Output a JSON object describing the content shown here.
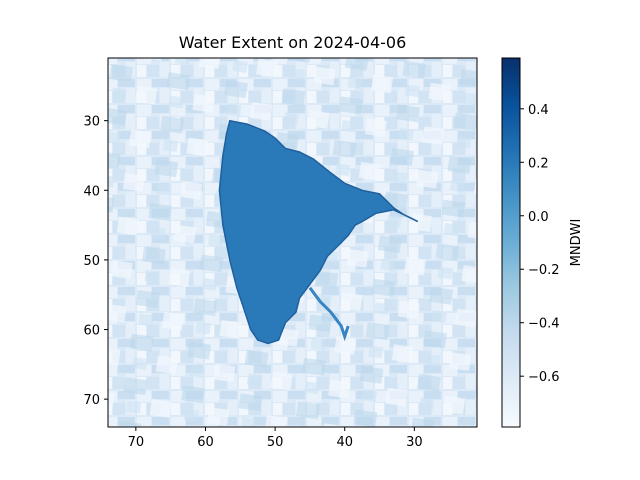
{
  "chart_data": {
    "type": "heatmap",
    "title": "Water Extent on 2024-04-06",
    "xlabel": "",
    "ylabel": "",
    "x_range": [
      74,
      21
    ],
    "y_range": [
      21,
      74
    ],
    "x_ticks": [
      70,
      60,
      50,
      40,
      30
    ],
    "y_ticks": [
      30,
      40,
      50,
      60,
      70
    ],
    "colormap": "Blues",
    "colorbar": {
      "label": "MNDWI",
      "range": [
        -0.79,
        0.59
      ],
      "ticks": [
        0.4,
        0.2,
        0.0,
        -0.2,
        -0.4,
        -0.6
      ],
      "tick_labels": [
        "0.4",
        "0.2",
        "0.0",
        "−0.2",
        "−0.4",
        "−0.6"
      ]
    },
    "water_body": {
      "mndwi": 0.2,
      "outline": [
        [
          56.5,
          30
        ],
        [
          54,
          30.5
        ],
        [
          51.5,
          31.5
        ],
        [
          50,
          32.5
        ],
        [
          48.5,
          34
        ],
        [
          46.5,
          34.5
        ],
        [
          44.5,
          35.5
        ],
        [
          42,
          37.5
        ],
        [
          40,
          39
        ],
        [
          37.5,
          40
        ],
        [
          35,
          40.5
        ],
        [
          34,
          41.5
        ],
        [
          33,
          42.5
        ],
        [
          31.5,
          43.5
        ],
        [
          29.5,
          44.5
        ],
        [
          30.5,
          44
        ],
        [
          33,
          42.8
        ],
        [
          35.5,
          43.3
        ],
        [
          37.5,
          44.5
        ],
        [
          38.5,
          45
        ],
        [
          39.5,
          46.5
        ],
        [
          41,
          48
        ],
        [
          42.5,
          49.5
        ],
        [
          43.5,
          51.5
        ],
        [
          45,
          53.5
        ],
        [
          46.5,
          55.5
        ],
        [
          47,
          57.5
        ],
        [
          48.5,
          59
        ],
        [
          49.5,
          61.5
        ],
        [
          51,
          62
        ],
        [
          52.5,
          61.5
        ],
        [
          53.5,
          60
        ],
        [
          54.5,
          57
        ],
        [
          55.5,
          54
        ],
        [
          56.5,
          50
        ],
        [
          57.5,
          45
        ],
        [
          58,
          40
        ],
        [
          57.5,
          35
        ],
        [
          57,
          32
        ]
      ],
      "channel": [
        [
          45,
          54
        ],
        [
          43.5,
          56
        ],
        [
          42,
          57.5
        ],
        [
          40.5,
          59.5
        ],
        [
          40,
          61
        ],
        [
          39.5,
          59.5
        ]
      ]
    }
  }
}
